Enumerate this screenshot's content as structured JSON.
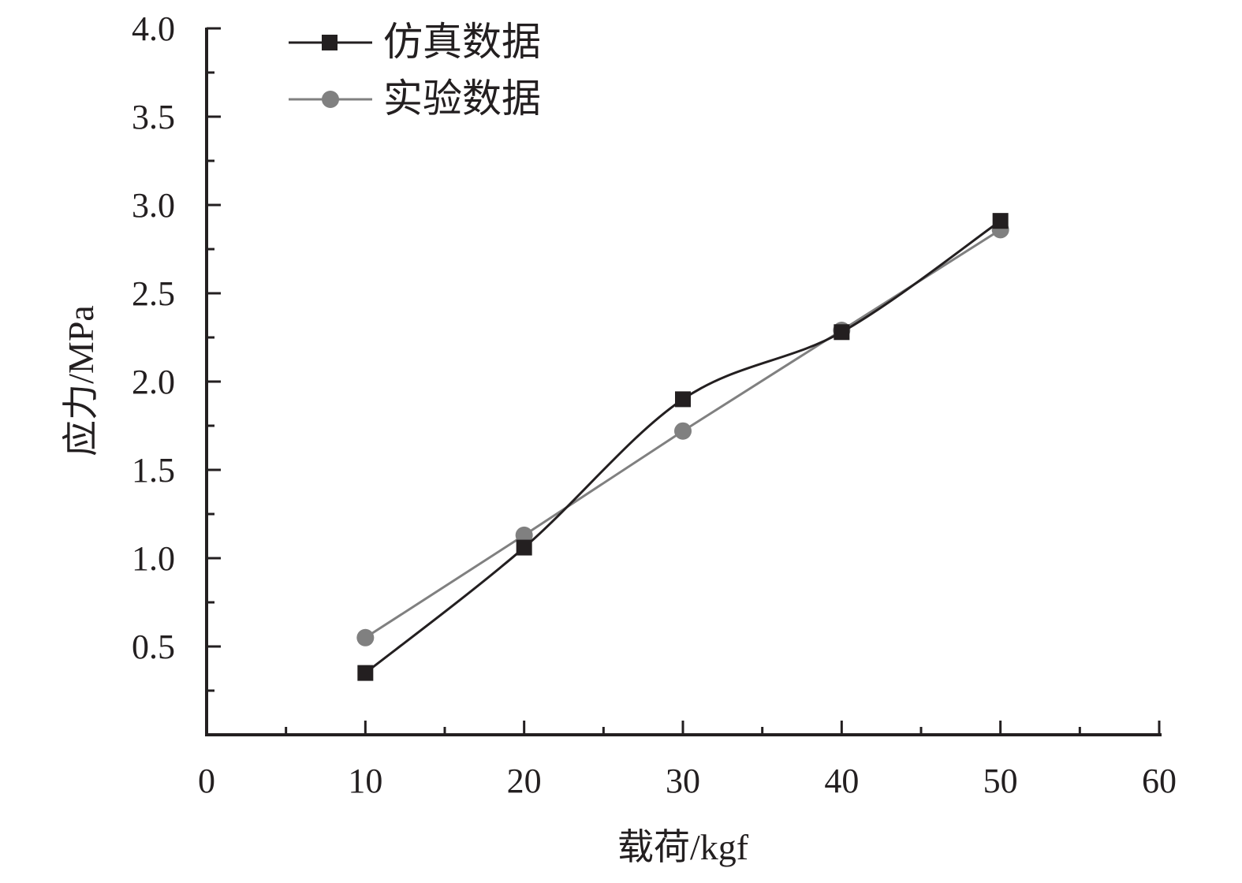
{
  "chart_data": {
    "type": "line",
    "title": "",
    "xlabel": "载荷/kgf",
    "ylabel": "应力/MPa",
    "xlim": [
      0,
      60
    ],
    "ylim": [
      0,
      4.0
    ],
    "xticks": [
      "0",
      "10",
      "20",
      "30",
      "40",
      "50",
      "60"
    ],
    "yticks": [
      "0.5",
      "1.0",
      "1.5",
      "2.0",
      "2.5",
      "3.0",
      "3.5",
      "4.0"
    ],
    "grid": false,
    "legend_position": "top-left",
    "x": [
      10,
      20,
      30,
      40,
      50
    ],
    "series": [
      {
        "name": "仿真数据",
        "values": [
          0.35,
          1.06,
          1.9,
          2.28,
          2.91
        ],
        "color": "#231f20",
        "marker": "square",
        "smooth": true
      },
      {
        "name": "实验数据",
        "values": [
          0.55,
          1.13,
          1.72,
          2.29,
          2.86
        ],
        "color": "#808080",
        "marker": "circle",
        "smooth": false
      }
    ]
  }
}
